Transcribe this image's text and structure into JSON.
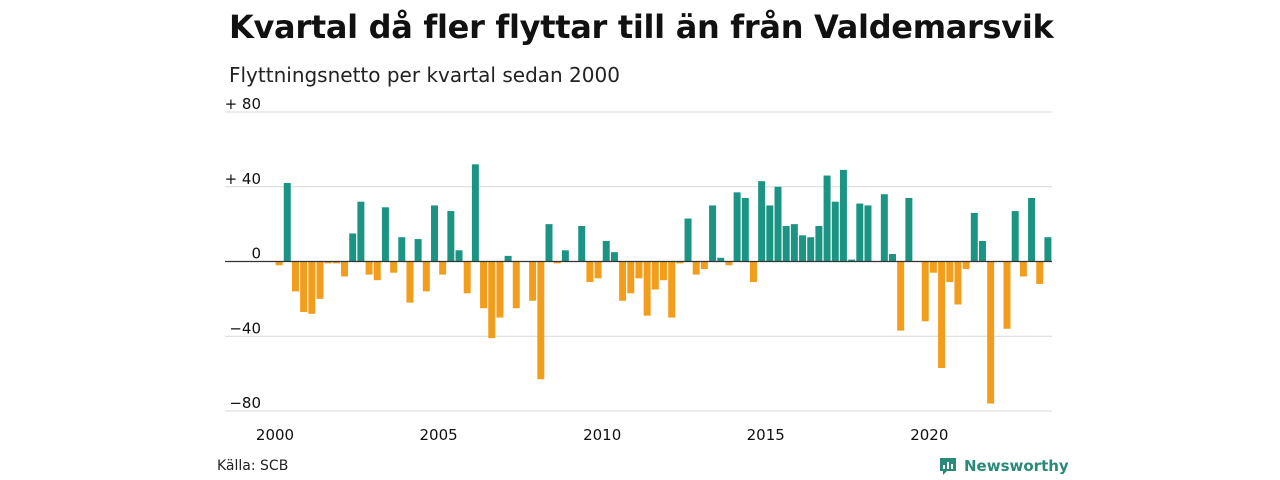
{
  "title": "Kvartal då fler flyttar till än från Valdemarsvik",
  "subtitle": "Flyttningsnetto per kvartal sedan 2000",
  "source": "Källa: SCB",
  "brand": "Newsworthy",
  "colors": {
    "positive": "#1b9484",
    "negative": "#f29d1c",
    "grid": "#d9d9d9",
    "axis": "#333333"
  },
  "chart_data": {
    "type": "bar",
    "title": "Kvartal då fler flyttar till än från Valdemarsvik",
    "subtitle": "Flyttningsnetto per kvartal sedan 2000",
    "x_start": "2000Q1",
    "x_ticks": [
      {
        "label": "2000",
        "year": 2000
      },
      {
        "label": "2005",
        "year": 2005
      },
      {
        "label": "2010",
        "year": 2010
      },
      {
        "label": "2015",
        "year": 2015
      },
      {
        "label": "2020",
        "year": 2020
      }
    ],
    "y_ticks": [
      {
        "value": 80,
        "label": "+ 80"
      },
      {
        "value": 40,
        "label": "+ 40"
      },
      {
        "value": 0,
        "label": "0"
      },
      {
        "value": -40,
        "label": "−40"
      },
      {
        "value": -80,
        "label": "−80"
      }
    ],
    "ylim": [
      -80,
      80
    ],
    "grid": true,
    "values": [
      -2,
      42,
      -16,
      -27,
      -28,
      -20,
      -1,
      -1,
      -8,
      15,
      32,
      -7,
      -10,
      29,
      -6,
      13,
      -22,
      12,
      -16,
      30,
      -7,
      27,
      6,
      -17,
      52,
      -25,
      -41,
      -30,
      3,
      -25,
      0,
      -21,
      -63,
      20,
      -1,
      6,
      0,
      19,
      -11,
      -9,
      11,
      5,
      -21,
      -17,
      -9,
      -29,
      -15,
      -10,
      -30,
      -1,
      23,
      -7,
      -4,
      30,
      2,
      -2,
      37,
      34,
      -11,
      43,
      30,
      40,
      19,
      20,
      14,
      13,
      19,
      46,
      32,
      49,
      1,
      31,
      30,
      0,
      36,
      4,
      -37,
      34,
      0,
      -32,
      -6,
      -57,
      -11,
      -23,
      -4,
      26,
      11,
      -76,
      0,
      -36,
      27,
      -8,
      34,
      -12,
      13
    ]
  }
}
